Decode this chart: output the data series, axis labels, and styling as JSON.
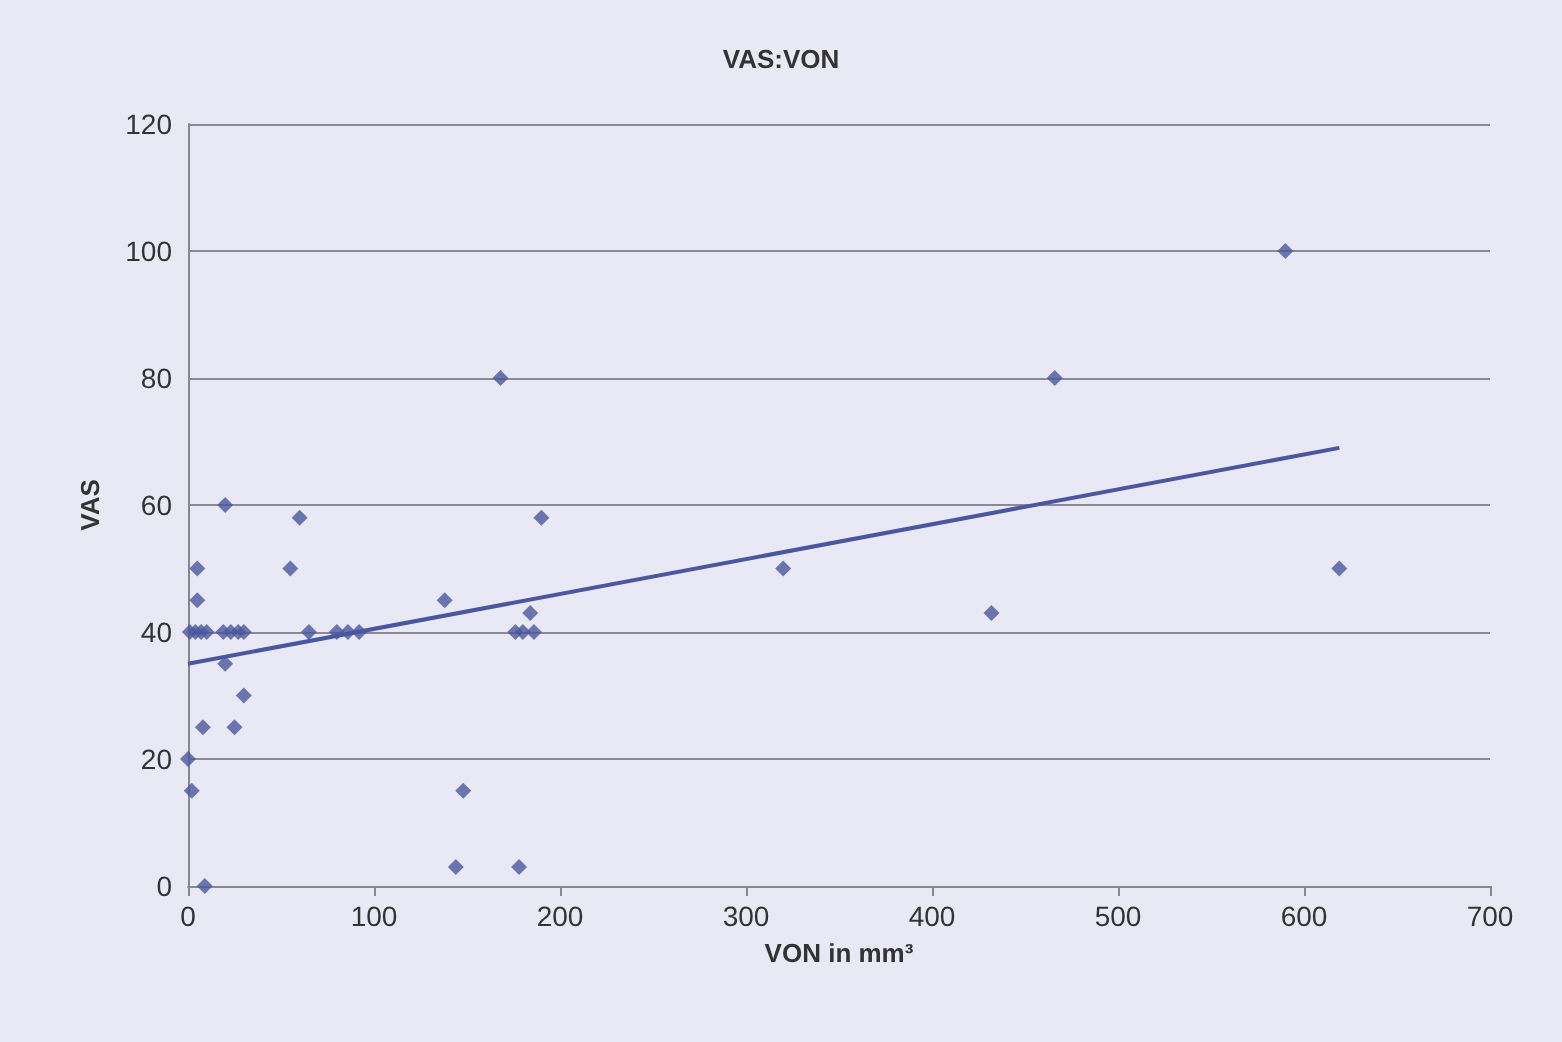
{
  "chart_data": {
    "type": "scatter",
    "title": "VAS:VON",
    "xlabel": "VON in mm³",
    "ylabel": "VAS",
    "xlim": [
      0,
      700
    ],
    "xticks": [
      0,
      100,
      200,
      300,
      400,
      500,
      600,
      700
    ],
    "ylim": [
      0,
      120
    ],
    "yticks": [
      0,
      20,
      40,
      60,
      80,
      100,
      120
    ],
    "grid": "y",
    "series": [
      {
        "marker": "diamond",
        "color": "#4a579e",
        "x": [
          20,
          60,
          190,
          5,
          55,
          5,
          138,
          184,
          1,
          4,
          7,
          10,
          19,
          23,
          27,
          30,
          65,
          80,
          86,
          92,
          176,
          180,
          186,
          20,
          30,
          8,
          25,
          0,
          2,
          148,
          144,
          178,
          9,
          168,
          590,
          466,
          320,
          432,
          619
        ],
        "values": [
          60,
          58,
          58,
          50,
          50,
          45,
          45,
          43,
          40,
          40,
          40,
          40,
          40,
          40,
          40,
          40,
          40,
          40,
          40,
          40,
          40,
          40,
          40,
          35,
          30,
          25,
          25,
          20,
          15,
          15,
          3,
          3,
          0,
          80,
          100,
          80,
          50,
          43,
          50
        ]
      },
      {
        "type": "line",
        "marker": "none",
        "color": "#4a579e",
        "x": [
          0,
          619
        ],
        "values": [
          35,
          69
        ]
      }
    ]
  }
}
